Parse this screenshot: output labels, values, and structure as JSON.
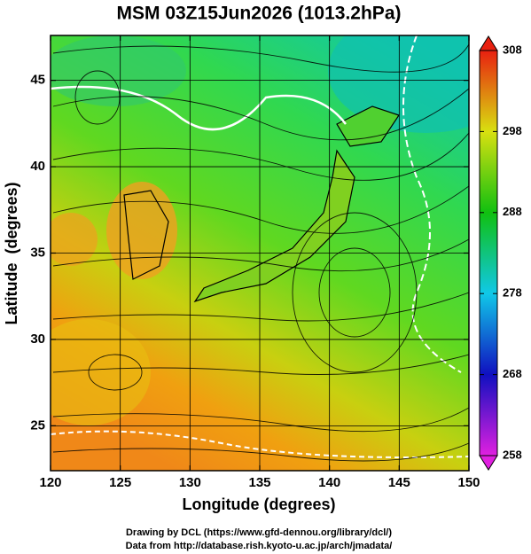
{
  "chart_data": {
    "type": "map",
    "title": "MSM 03Z15Jun2026 (1013.2hPa)",
    "xlabel": "Longitude (degrees)",
    "ylabel": "Latitude  (degrees)",
    "xlim": [
      120,
      150
    ],
    "xticks": [
      120,
      125,
      130,
      135,
      140,
      145,
      150
    ],
    "ylim": [
      22.4,
      47.6
    ],
    "yticks": [
      25,
      30,
      35,
      40,
      45
    ],
    "grid": true,
    "colorbar": {
      "lim": [
        258,
        308
      ],
      "ticks": [
        258,
        268,
        278,
        288,
        298,
        308
      ],
      "colors": [
        "#e020e0",
        "#1010c0",
        "#10c8e8",
        "#10c010",
        "#d8e010",
        "#e82010"
      ]
    },
    "credits": [
      "Drawing by DCL (https://www.gfd-dennou.org/library/dcl/)",
      "Data from http://database.rish.kyoto-u.ac.jp/arch/jmadata/"
    ]
  }
}
